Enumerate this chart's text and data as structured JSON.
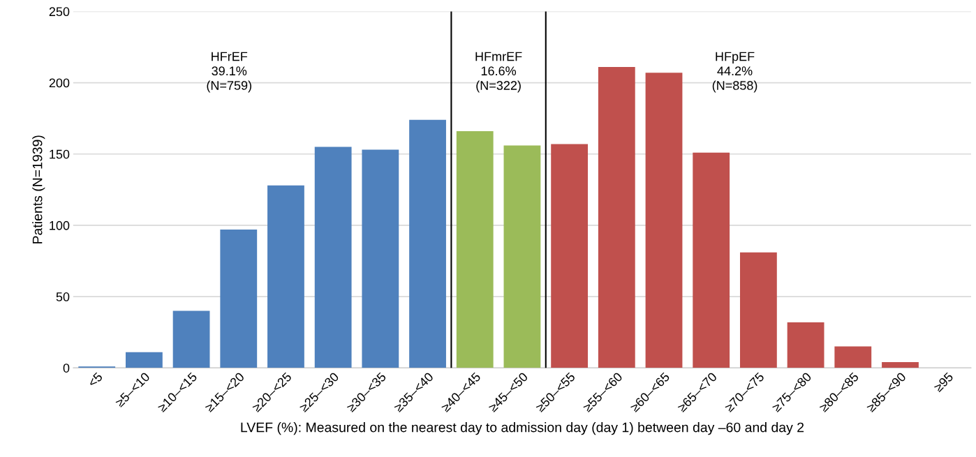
{
  "chart_data": {
    "type": "bar",
    "xlabel": "LVEF (%): Measured on the nearest day to admission day (day 1) between day –60 and day 2",
    "ylabel": "Patients (N=1939)",
    "categories": [
      "<5",
      "≥5–<10",
      "≥10–<15",
      "≥15–<20",
      "≥20–<25",
      "≥25–<30",
      "≥30–<35",
      "≥35–<40",
      "≥40–<45",
      "≥45–<50",
      "≥50–<55",
      "≥55–<60",
      "≥60–<65",
      "≥65–<70",
      "≥70–<75",
      "≥75–<80",
      "≥80–<85",
      "≥85–<90",
      "≥95"
    ],
    "values": [
      1,
      11,
      40,
      97,
      128,
      155,
      153,
      174,
      166,
      156,
      157,
      211,
      207,
      151,
      81,
      32,
      15,
      4,
      0
    ],
    "colors": [
      "#4f81bd",
      "#4f81bd",
      "#4f81bd",
      "#4f81bd",
      "#4f81bd",
      "#4f81bd",
      "#4f81bd",
      "#4f81bd",
      "#9bbb59",
      "#9bbb59",
      "#c0504d",
      "#c0504d",
      "#c0504d",
      "#c0504d",
      "#c0504d",
      "#c0504d",
      "#c0504d",
      "#c0504d",
      "#c0504d"
    ],
    "ylim": [
      0,
      250
    ],
    "yticks": [
      0,
      50,
      100,
      150,
      200,
      250
    ],
    "grid": "y",
    "annotations": [
      "HFrEF\n39.1%\n(N=759)",
      "HFmrEF\n16.6%\n(N=322)",
      "HFpEF\n44.2%\n(N=858)"
    ]
  }
}
